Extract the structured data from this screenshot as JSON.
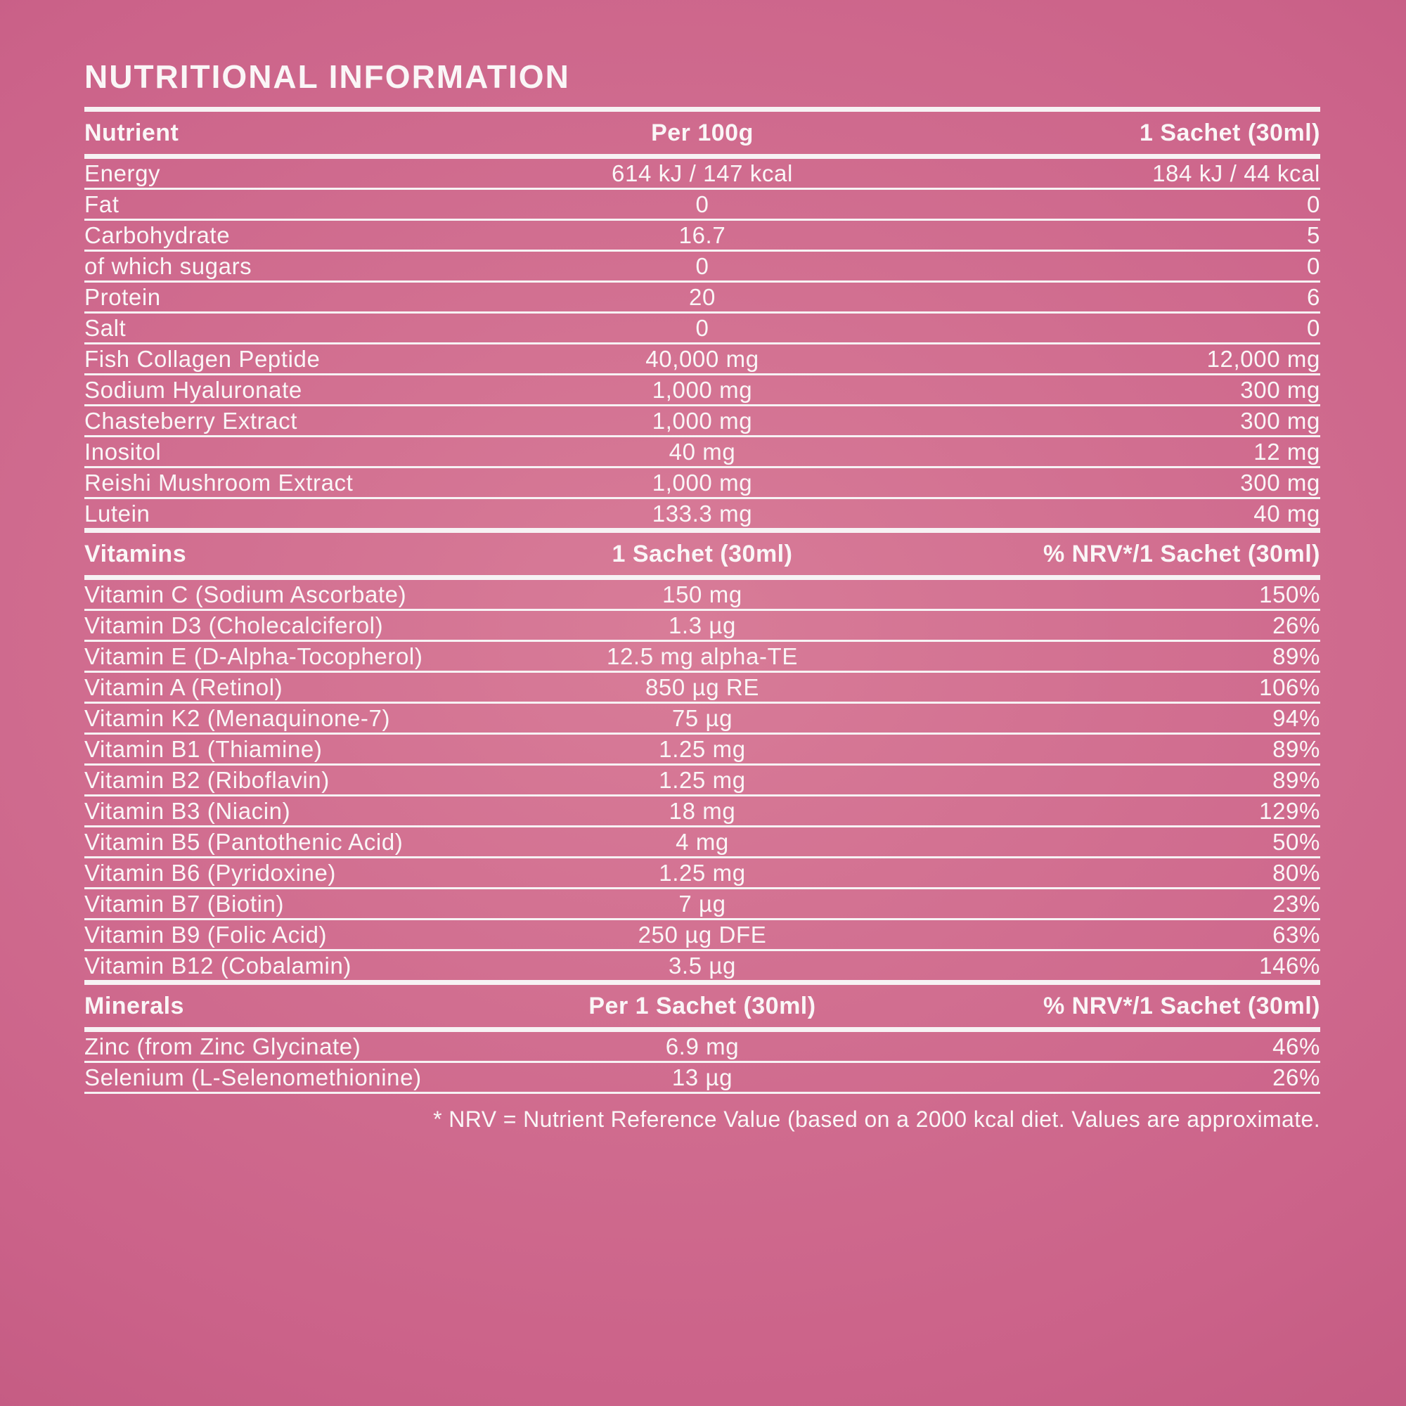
{
  "title": "NUTRITIONAL INFORMATION",
  "colors": {
    "background_center": "#d87c98",
    "background_edge": "#b24a72",
    "text": "#faf6f7",
    "divider": "#f7f2f4"
  },
  "sections": [
    {
      "header": [
        "Nutrient",
        "Per 100g",
        "1 Sachet (30ml)"
      ],
      "rows": [
        [
          "Energy",
          "614 kJ / 147 kcal",
          "184 kJ / 44 kcal"
        ],
        [
          "Fat",
          "0",
          "0"
        ],
        [
          "Carbohydrate",
          "16.7",
          "5"
        ],
        [
          "of which sugars",
          "0",
          "0"
        ],
        [
          "Protein",
          "20",
          "6"
        ],
        [
          "Salt",
          "0",
          "0"
        ],
        [
          "Fish Collagen Peptide",
          "40,000 mg",
          "12,000 mg"
        ],
        [
          "Sodium Hyaluronate",
          "1,000 mg",
          "300 mg"
        ],
        [
          "Chasteberry Extract",
          "1,000 mg",
          "300 mg"
        ],
        [
          "Inositol",
          "40 mg",
          "12 mg"
        ],
        [
          "Reishi Mushroom Extract",
          "1,000 mg",
          "300 mg"
        ],
        [
          "Lutein",
          "133.3 mg",
          "40 mg"
        ]
      ]
    },
    {
      "header": [
        "Vitamins",
        "1 Sachet (30ml)",
        "% NRV*/1 Sachet (30ml)"
      ],
      "rows": [
        [
          "Vitamin C (Sodium Ascorbate)",
          "150 mg",
          "150%"
        ],
        [
          "Vitamin D3 (Cholecalciferol)",
          "1.3 µg",
          "26%"
        ],
        [
          "Vitamin E (D-Alpha-Tocopherol)",
          "12.5 mg alpha-TE",
          "89%"
        ],
        [
          "Vitamin A (Retinol)",
          "850 µg RE",
          "106%"
        ],
        [
          "Vitamin K2 (Menaquinone-7)",
          "75 µg",
          "94%"
        ],
        [
          "Vitamin B1 (Thiamine)",
          "1.25 mg",
          "89%"
        ],
        [
          "Vitamin B2 (Riboflavin)",
          "1.25 mg",
          "89%"
        ],
        [
          "Vitamin B3 (Niacin)",
          "18 mg",
          "129%"
        ],
        [
          "Vitamin B5 (Pantothenic Acid)",
          "4 mg",
          "50%"
        ],
        [
          "Vitamin B6 (Pyridoxine)",
          "1.25 mg",
          "80%"
        ],
        [
          "Vitamin B7 (Biotin)",
          "7 µg",
          "23%"
        ],
        [
          "Vitamin B9 (Folic Acid)",
          "250 µg DFE",
          "63%"
        ],
        [
          "Vitamin B12 (Cobalamin)",
          "3.5 µg",
          "146%"
        ]
      ]
    },
    {
      "header": [
        "Minerals",
        "Per 1 Sachet (30ml)",
        "% NRV*/1 Sachet (30ml)"
      ],
      "rows": [
        [
          "Zinc (from Zinc Glycinate)",
          "6.9 mg",
          "46%"
        ],
        [
          "Selenium (L-Selenomethionine)",
          "13 µg",
          "26%"
        ]
      ]
    }
  ],
  "footnote": "* NRV = Nutrient Reference Value (based on a 2000 kcal diet. Values are approximate."
}
